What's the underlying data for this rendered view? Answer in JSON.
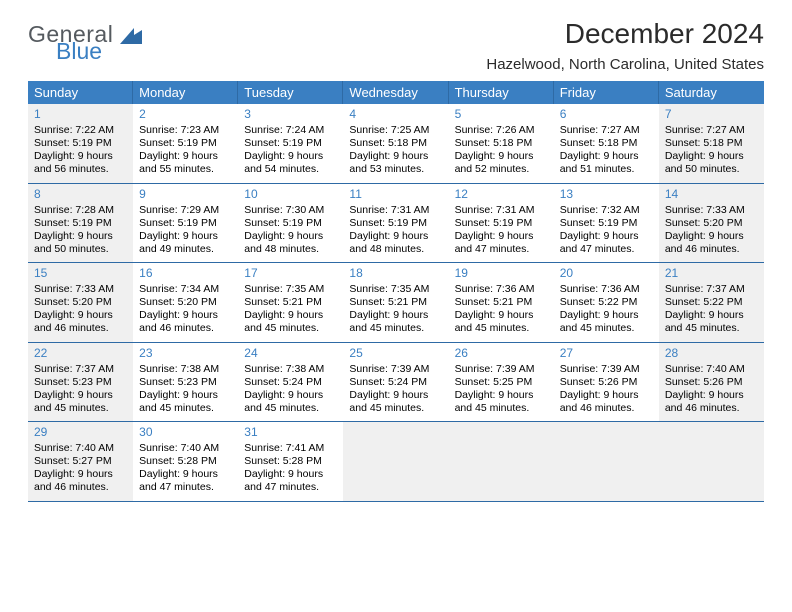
{
  "brand": {
    "general": "General",
    "blue": "Blue"
  },
  "title": "December 2024",
  "location": "Hazelwood, North Carolina, United States",
  "colors": {
    "header_bg": "#3a7fc2",
    "header_border": "#2e6aa5",
    "daynum_color": "#3a7fc2",
    "shaded_bg": "#f0f0f0",
    "text": "#000000"
  },
  "day_headers": [
    "Sunday",
    "Monday",
    "Tuesday",
    "Wednesday",
    "Thursday",
    "Friday",
    "Saturday"
  ],
  "weeks": [
    [
      {
        "n": "1",
        "shaded": true,
        "sunrise": "Sunrise: 7:22 AM",
        "sunset": "Sunset: 5:19 PM",
        "day1": "Daylight: 9 hours",
        "day2": "and 56 minutes."
      },
      {
        "n": "2",
        "shaded": false,
        "sunrise": "Sunrise: 7:23 AM",
        "sunset": "Sunset: 5:19 PM",
        "day1": "Daylight: 9 hours",
        "day2": "and 55 minutes."
      },
      {
        "n": "3",
        "shaded": false,
        "sunrise": "Sunrise: 7:24 AM",
        "sunset": "Sunset: 5:19 PM",
        "day1": "Daylight: 9 hours",
        "day2": "and 54 minutes."
      },
      {
        "n": "4",
        "shaded": false,
        "sunrise": "Sunrise: 7:25 AM",
        "sunset": "Sunset: 5:18 PM",
        "day1": "Daylight: 9 hours",
        "day2": "and 53 minutes."
      },
      {
        "n": "5",
        "shaded": false,
        "sunrise": "Sunrise: 7:26 AM",
        "sunset": "Sunset: 5:18 PM",
        "day1": "Daylight: 9 hours",
        "day2": "and 52 minutes."
      },
      {
        "n": "6",
        "shaded": false,
        "sunrise": "Sunrise: 7:27 AM",
        "sunset": "Sunset: 5:18 PM",
        "day1": "Daylight: 9 hours",
        "day2": "and 51 minutes."
      },
      {
        "n": "7",
        "shaded": true,
        "sunrise": "Sunrise: 7:27 AM",
        "sunset": "Sunset: 5:18 PM",
        "day1": "Daylight: 9 hours",
        "day2": "and 50 minutes."
      }
    ],
    [
      {
        "n": "8",
        "shaded": true,
        "sunrise": "Sunrise: 7:28 AM",
        "sunset": "Sunset: 5:19 PM",
        "day1": "Daylight: 9 hours",
        "day2": "and 50 minutes."
      },
      {
        "n": "9",
        "shaded": false,
        "sunrise": "Sunrise: 7:29 AM",
        "sunset": "Sunset: 5:19 PM",
        "day1": "Daylight: 9 hours",
        "day2": "and 49 minutes."
      },
      {
        "n": "10",
        "shaded": false,
        "sunrise": "Sunrise: 7:30 AM",
        "sunset": "Sunset: 5:19 PM",
        "day1": "Daylight: 9 hours",
        "day2": "and 48 minutes."
      },
      {
        "n": "11",
        "shaded": false,
        "sunrise": "Sunrise: 7:31 AM",
        "sunset": "Sunset: 5:19 PM",
        "day1": "Daylight: 9 hours",
        "day2": "and 48 minutes."
      },
      {
        "n": "12",
        "shaded": false,
        "sunrise": "Sunrise: 7:31 AM",
        "sunset": "Sunset: 5:19 PM",
        "day1": "Daylight: 9 hours",
        "day2": "and 47 minutes."
      },
      {
        "n": "13",
        "shaded": false,
        "sunrise": "Sunrise: 7:32 AM",
        "sunset": "Sunset: 5:19 PM",
        "day1": "Daylight: 9 hours",
        "day2": "and 47 minutes."
      },
      {
        "n": "14",
        "shaded": true,
        "sunrise": "Sunrise: 7:33 AM",
        "sunset": "Sunset: 5:20 PM",
        "day1": "Daylight: 9 hours",
        "day2": "and 46 minutes."
      }
    ],
    [
      {
        "n": "15",
        "shaded": true,
        "sunrise": "Sunrise: 7:33 AM",
        "sunset": "Sunset: 5:20 PM",
        "day1": "Daylight: 9 hours",
        "day2": "and 46 minutes."
      },
      {
        "n": "16",
        "shaded": false,
        "sunrise": "Sunrise: 7:34 AM",
        "sunset": "Sunset: 5:20 PM",
        "day1": "Daylight: 9 hours",
        "day2": "and 46 minutes."
      },
      {
        "n": "17",
        "shaded": false,
        "sunrise": "Sunrise: 7:35 AM",
        "sunset": "Sunset: 5:21 PM",
        "day1": "Daylight: 9 hours",
        "day2": "and 45 minutes."
      },
      {
        "n": "18",
        "shaded": false,
        "sunrise": "Sunrise: 7:35 AM",
        "sunset": "Sunset: 5:21 PM",
        "day1": "Daylight: 9 hours",
        "day2": "and 45 minutes."
      },
      {
        "n": "19",
        "shaded": false,
        "sunrise": "Sunrise: 7:36 AM",
        "sunset": "Sunset: 5:21 PM",
        "day1": "Daylight: 9 hours",
        "day2": "and 45 minutes."
      },
      {
        "n": "20",
        "shaded": false,
        "sunrise": "Sunrise: 7:36 AM",
        "sunset": "Sunset: 5:22 PM",
        "day1": "Daylight: 9 hours",
        "day2": "and 45 minutes."
      },
      {
        "n": "21",
        "shaded": true,
        "sunrise": "Sunrise: 7:37 AM",
        "sunset": "Sunset: 5:22 PM",
        "day1": "Daylight: 9 hours",
        "day2": "and 45 minutes."
      }
    ],
    [
      {
        "n": "22",
        "shaded": true,
        "sunrise": "Sunrise: 7:37 AM",
        "sunset": "Sunset: 5:23 PM",
        "day1": "Daylight: 9 hours",
        "day2": "and 45 minutes."
      },
      {
        "n": "23",
        "shaded": false,
        "sunrise": "Sunrise: 7:38 AM",
        "sunset": "Sunset: 5:23 PM",
        "day1": "Daylight: 9 hours",
        "day2": "and 45 minutes."
      },
      {
        "n": "24",
        "shaded": false,
        "sunrise": "Sunrise: 7:38 AM",
        "sunset": "Sunset: 5:24 PM",
        "day1": "Daylight: 9 hours",
        "day2": "and 45 minutes."
      },
      {
        "n": "25",
        "shaded": false,
        "sunrise": "Sunrise: 7:39 AM",
        "sunset": "Sunset: 5:24 PM",
        "day1": "Daylight: 9 hours",
        "day2": "and 45 minutes."
      },
      {
        "n": "26",
        "shaded": false,
        "sunrise": "Sunrise: 7:39 AM",
        "sunset": "Sunset: 5:25 PM",
        "day1": "Daylight: 9 hours",
        "day2": "and 45 minutes."
      },
      {
        "n": "27",
        "shaded": false,
        "sunrise": "Sunrise: 7:39 AM",
        "sunset": "Sunset: 5:26 PM",
        "day1": "Daylight: 9 hours",
        "day2": "and 46 minutes."
      },
      {
        "n": "28",
        "shaded": true,
        "sunrise": "Sunrise: 7:40 AM",
        "sunset": "Sunset: 5:26 PM",
        "day1": "Daylight: 9 hours",
        "day2": "and 46 minutes."
      }
    ],
    [
      {
        "n": "29",
        "shaded": true,
        "sunrise": "Sunrise: 7:40 AM",
        "sunset": "Sunset: 5:27 PM",
        "day1": "Daylight: 9 hours",
        "day2": "and 46 minutes."
      },
      {
        "n": "30",
        "shaded": false,
        "sunrise": "Sunrise: 7:40 AM",
        "sunset": "Sunset: 5:28 PM",
        "day1": "Daylight: 9 hours",
        "day2": "and 47 minutes."
      },
      {
        "n": "31",
        "shaded": false,
        "sunrise": "Sunrise: 7:41 AM",
        "sunset": "Sunset: 5:28 PM",
        "day1": "Daylight: 9 hours",
        "day2": "and 47 minutes."
      },
      {
        "n": "",
        "shaded": true,
        "sunrise": "",
        "sunset": "",
        "day1": "",
        "day2": ""
      },
      {
        "n": "",
        "shaded": true,
        "sunrise": "",
        "sunset": "",
        "day1": "",
        "day2": ""
      },
      {
        "n": "",
        "shaded": true,
        "sunrise": "",
        "sunset": "",
        "day1": "",
        "day2": ""
      },
      {
        "n": "",
        "shaded": true,
        "sunrise": "",
        "sunset": "",
        "day1": "",
        "day2": ""
      }
    ]
  ]
}
